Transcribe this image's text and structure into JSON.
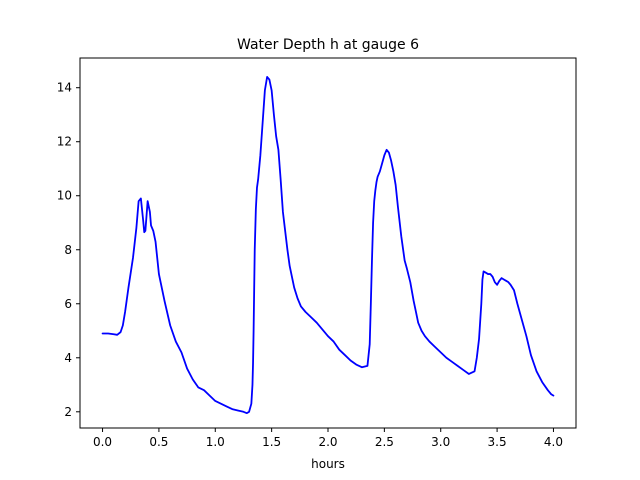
{
  "chart_data": {
    "type": "line",
    "title": "Water Depth h at gauge 6",
    "xlabel": "hours",
    "ylabel": "",
    "xlim": [
      -0.2,
      4.2
    ],
    "ylim": [
      1.4,
      15.1
    ],
    "xticks": [
      0.0,
      0.5,
      1.0,
      1.5,
      2.0,
      2.5,
      3.0,
      3.5,
      4.0
    ],
    "xtick_labels": [
      "0.0",
      "0.5",
      "1.0",
      "1.5",
      "2.0",
      "2.5",
      "3.0",
      "3.5",
      "4.0"
    ],
    "yticks": [
      2,
      4,
      6,
      8,
      10,
      12,
      14
    ],
    "ytick_labels": [
      "2",
      "4",
      "6",
      "8",
      "10",
      "12",
      "14"
    ],
    "grid": false,
    "line_color": "#0000ff",
    "series": [
      {
        "x": [
          0.0,
          0.05,
          0.1,
          0.13,
          0.16,
          0.18,
          0.2,
          0.23,
          0.27,
          0.3,
          0.32,
          0.34,
          0.36,
          0.37,
          0.38,
          0.4,
          0.42,
          0.43,
          0.45,
          0.47,
          0.5,
          0.55,
          0.6,
          0.65,
          0.7,
          0.75,
          0.8,
          0.85,
          0.9,
          0.95,
          1.0,
          1.05,
          1.1,
          1.15,
          1.2,
          1.25,
          1.28,
          1.3,
          1.32,
          1.33,
          1.335,
          1.34,
          1.345,
          1.35,
          1.36,
          1.37,
          1.38,
          1.4,
          1.42,
          1.44,
          1.46,
          1.48,
          1.5,
          1.52,
          1.54,
          1.56,
          1.58,
          1.6,
          1.62,
          1.64,
          1.66,
          1.68,
          1.7,
          1.73,
          1.76,
          1.8,
          1.85,
          1.9,
          1.95,
          2.0,
          2.05,
          2.1,
          2.15,
          2.2,
          2.25,
          2.3,
          2.35,
          2.37,
          2.38,
          2.39,
          2.4,
          2.41,
          2.42,
          2.43,
          2.44,
          2.46,
          2.48,
          2.5,
          2.52,
          2.54,
          2.56,
          2.58,
          2.6,
          2.62,
          2.65,
          2.68,
          2.7,
          2.73,
          2.76,
          2.78,
          2.8,
          2.83,
          2.86,
          2.9,
          2.95,
          3.0,
          3.05,
          3.1,
          3.15,
          3.2,
          3.25,
          3.3,
          3.32,
          3.34,
          3.36,
          3.37,
          3.38,
          3.4,
          3.42,
          3.44,
          3.46,
          3.48,
          3.5,
          3.52,
          3.54,
          3.56,
          3.58,
          3.6,
          3.62,
          3.65,
          3.68,
          3.72,
          3.76,
          3.8,
          3.85,
          3.9,
          3.95,
          3.98,
          4.0
        ],
        "y": [
          4.9,
          4.9,
          4.87,
          4.85,
          4.95,
          5.2,
          5.7,
          6.6,
          7.7,
          8.8,
          9.8,
          9.9,
          9.1,
          8.65,
          8.7,
          9.8,
          9.4,
          8.9,
          8.7,
          8.3,
          7.1,
          6.1,
          5.2,
          4.6,
          4.2,
          3.6,
          3.2,
          2.9,
          2.8,
          2.6,
          2.4,
          2.3,
          2.2,
          2.1,
          2.05,
          2.0,
          1.95,
          2.0,
          2.3,
          3.0,
          3.8,
          5.0,
          6.5,
          8.0,
          9.5,
          10.3,
          10.6,
          11.5,
          12.7,
          13.9,
          14.4,
          14.3,
          13.9,
          13.0,
          12.2,
          11.7,
          10.6,
          9.4,
          8.7,
          8.0,
          7.4,
          7.0,
          6.6,
          6.2,
          5.9,
          5.7,
          5.5,
          5.3,
          5.05,
          4.8,
          4.6,
          4.3,
          4.1,
          3.9,
          3.75,
          3.65,
          3.7,
          4.5,
          6.0,
          7.6,
          9.0,
          9.8,
          10.2,
          10.5,
          10.7,
          10.9,
          11.2,
          11.5,
          11.7,
          11.6,
          11.3,
          10.9,
          10.4,
          9.6,
          8.5,
          7.6,
          7.3,
          6.8,
          6.1,
          5.7,
          5.3,
          5.0,
          4.8,
          4.6,
          4.4,
          4.2,
          4.0,
          3.85,
          3.7,
          3.55,
          3.4,
          3.5,
          4.0,
          4.7,
          6.0,
          6.9,
          7.2,
          7.15,
          7.1,
          7.1,
          7.0,
          6.8,
          6.7,
          6.85,
          6.95,
          6.9,
          6.85,
          6.8,
          6.7,
          6.5,
          6.0,
          5.4,
          4.8,
          4.1,
          3.5,
          3.1,
          2.8,
          2.65,
          2.6
        ]
      }
    ]
  }
}
